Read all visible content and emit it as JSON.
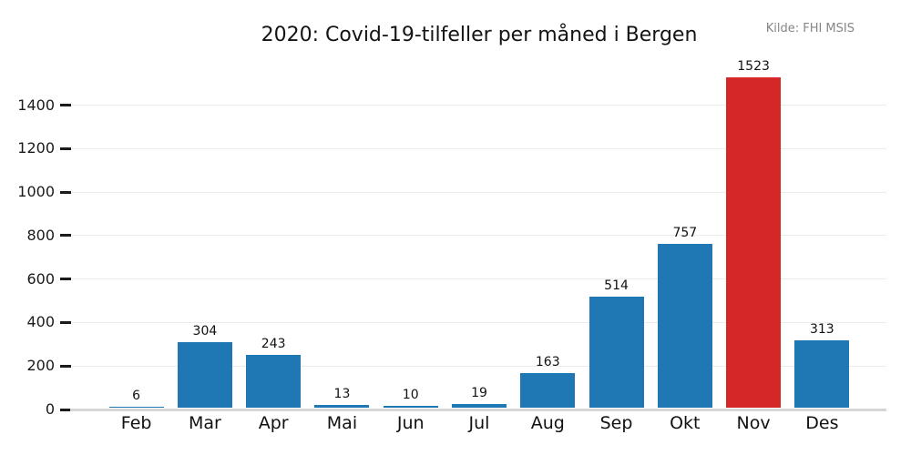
{
  "chart_data": {
    "type": "bar",
    "title": "2020: Covid-19-tilfeller per måned i Bergen",
    "source": "Kilde: FHI MSIS",
    "categories": [
      "Feb",
      "Mar",
      "Apr",
      "Mai",
      "Jun",
      "Jul",
      "Aug",
      "Sep",
      "Okt",
      "Nov",
      "Des"
    ],
    "values": [
      6,
      304,
      243,
      13,
      10,
      19,
      163,
      514,
      757,
      1523,
      313
    ],
    "bar_value_labels": [
      "6",
      "304",
      "243",
      "13",
      "10",
      "19",
      "163",
      "514",
      "757",
      "1523",
      "313"
    ],
    "xlabel": "",
    "ylabel": "",
    "ylim": [
      0,
      1570
    ],
    "yticks": [
      0,
      200,
      400,
      600,
      800,
      1000,
      1200,
      1400
    ],
    "grid": "horizontal",
    "legend": "none",
    "highlight_category": "Nov",
    "colors": {
      "bar": "#1f77b4",
      "highlight": "#d62728",
      "grid": "#ebebeb",
      "baseline": "#d6d6d6",
      "tick": "#1a1a1a",
      "title_text": "#141414",
      "source_text": "#868686",
      "label_text": "#111111"
    }
  }
}
